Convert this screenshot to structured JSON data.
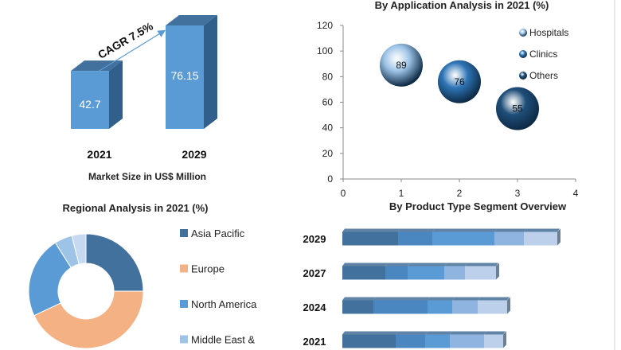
{
  "chart_data": [
    {
      "type": "bar",
      "categories": [
        "2021",
        "2029"
      ],
      "values": [
        42.7,
        76.15
      ],
      "data_labels": [
        "42.7",
        "76.15"
      ],
      "xlabel": "Market Size in US$ Million",
      "annotation": "CAGR 7.5%",
      "color": "#5b9bd5"
    },
    {
      "type": "scatter",
      "title": "By Application Analysis in 2021 (%)",
      "series": [
        {
          "name": "Hospitals",
          "x": 1,
          "y": 89,
          "label": "89",
          "color": "#9cc3e6"
        },
        {
          "name": "Clinics",
          "x": 2,
          "y": 76,
          "label": "76",
          "color": "#2e75b6"
        },
        {
          "name": "Others",
          "x": 3,
          "y": 55,
          "label": "55",
          "color": "#1f4e79"
        }
      ],
      "xlim": [
        0,
        4
      ],
      "ylim": [
        0,
        120
      ],
      "xticks": [
        "0",
        "1",
        "2",
        "3",
        "4"
      ],
      "yticks": [
        "0",
        "20",
        "40",
        "60",
        "80",
        "100",
        "120"
      ],
      "legend": "top-right"
    },
    {
      "type": "pie",
      "title": "Regional Analysis in 2021 (%)",
      "donut": true,
      "slices": [
        {
          "name": "Asia Pacific",
          "value": 25,
          "color": "#41719c"
        },
        {
          "name": "Europe",
          "value": 43,
          "color": "#f4b183"
        },
        {
          "name": "North America",
          "value": 23,
          "color": "#5b9bd5"
        },
        {
          "name": "Middle East &",
          "value": 5,
          "color": "#9dc3e6"
        },
        {
          "name": "",
          "value": 4,
          "color": "#c5d9f0"
        }
      ],
      "legend": "right"
    },
    {
      "type": "bar",
      "orientation": "horizontal",
      "stacked": true,
      "title": "By Product Type Segment Overview",
      "categories": [
        "2029",
        "2027",
        "2024",
        "2021"
      ],
      "series": [
        {
          "values": [
            70,
            54,
            39,
            67
          ],
          "color": "#41719c"
        },
        {
          "values": [
            43,
            28,
            68,
            37
          ],
          "color": "#4a86c0"
        },
        {
          "values": [
            78,
            46,
            31,
            31
          ],
          "color": "#5b9bd5"
        },
        {
          "values": [
            37,
            26,
            32,
            43
          ],
          "color": "#8fb4e0"
        },
        {
          "values": [
            42,
            39,
            37,
            24
          ],
          "color": "#bcd0ec"
        }
      ]
    }
  ]
}
